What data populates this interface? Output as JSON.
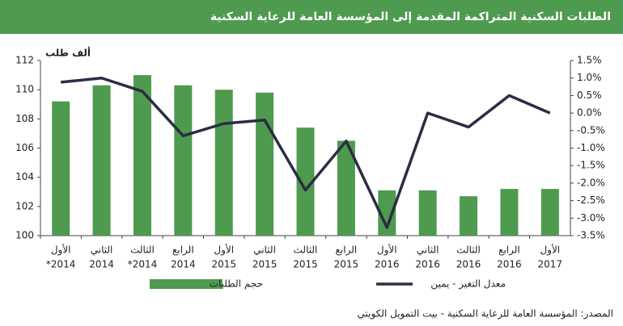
{
  "chart_data": {
    "type": "bar-line",
    "title": "الطلبات السكنية المتراكمة المقدمة إلى المؤسسة العامة للرعاية السكنية",
    "y_label": "ألف طلب",
    "categories": [
      [
        "الأول",
        "*2014"
      ],
      [
        "الثاني",
        "2014"
      ],
      [
        "الثالث",
        "*2014"
      ],
      [
        "الرابع",
        "2014"
      ],
      [
        "الأول",
        "2015"
      ],
      [
        "الثاني",
        "2015"
      ],
      [
        "الثالث",
        "2015"
      ],
      [
        "الرابع",
        "2015"
      ],
      [
        "الأول",
        "2016"
      ],
      [
        "الثاني",
        "2016"
      ],
      [
        "الثالث",
        "2016"
      ],
      [
        "الرابع",
        "2016"
      ],
      [
        "الأول",
        "2017"
      ]
    ],
    "series": [
      {
        "name": "حجم الطلبات",
        "color": "#4e9a4f",
        "type": "bar",
        "values": [
          109.2,
          110.3,
          111.0,
          110.3,
          110.0,
          109.8,
          107.4,
          106.5,
          103.1,
          103.1,
          102.7,
          103.2,
          103.2
        ]
      },
      {
        "name": "معدل التغير - يمين",
        "color": "#2b2d42",
        "type": "line",
        "axis": "y2",
        "values": [
          0.88,
          1.0,
          0.62,
          -0.65,
          -0.3,
          -0.2,
          -2.2,
          -0.8,
          -3.27,
          0.0,
          -0.4,
          0.5,
          0.0
        ]
      }
    ],
    "ylim": [
      100,
      112
    ],
    "yticks": [
      100,
      102,
      104,
      106,
      108,
      110,
      112
    ],
    "y2lim": [
      -3.5,
      1.5
    ],
    "y2ticks": [
      {
        "value": 1.5,
        "label": "1.5%"
      },
      {
        "value": 1.0,
        "label": "1.0%"
      },
      {
        "value": 0.5,
        "label": "0.5%"
      },
      {
        "value": 0.0,
        "label": "0.0%"
      },
      {
        "value": -0.5,
        "label": "-0.5%"
      },
      {
        "value": -1.0,
        "label": "-1.0%"
      },
      {
        "value": -1.5,
        "label": "-1.5%"
      },
      {
        "value": -2.0,
        "label": "-2.0%"
      },
      {
        "value": -2.5,
        "label": "-2.5%"
      },
      {
        "value": -3.0,
        "label": "-3.0%"
      },
      {
        "value": -3.5,
        "label": "-3.5%"
      }
    ],
    "source": "المصدر: المؤسسة العامة للرعاية السكنية  -  بيت التمويل الكويتي"
  }
}
